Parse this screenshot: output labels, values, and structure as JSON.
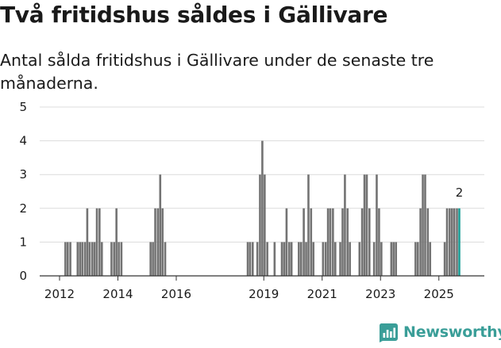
{
  "header": {
    "title": "Två fritidshus såldes i Gällivare",
    "subtitle": "Antal sålda fritidshus i Gällivare under de senaste tre månaderna."
  },
  "brand": {
    "name": "Newsworthy"
  },
  "colors": {
    "bar": "#737373",
    "highlight": "#1a9e96",
    "grid": "#dcdcdc",
    "axis": "#333333",
    "brand": "#3a9e98"
  },
  "chart_data": {
    "type": "bar",
    "title": "Två fritidshus såldes i Gällivare",
    "subtitle": "Antal sålda fritidshus i Gällivare under de senaste tre månaderna.",
    "xlabel": "",
    "ylabel": "",
    "ylim": [
      0,
      5
    ],
    "yticks": [
      0,
      1,
      2,
      3,
      4,
      5
    ],
    "xticks": [
      {
        "year": 2012,
        "label": "2012"
      },
      {
        "year": 2014,
        "label": "2014"
      },
      {
        "year": 2016,
        "label": "2016"
      },
      {
        "year": 2019,
        "label": "2019"
      },
      {
        "year": 2021,
        "label": "2021"
      },
      {
        "year": 2023,
        "label": "2023"
      },
      {
        "year": 2025,
        "label": "2025"
      }
    ],
    "x_range": [
      2011.5,
      2026.1
    ],
    "series": [
      {
        "name": "Sålda fritidshus",
        "bars": [
          {
            "x": 2012.2,
            "value": 1
          },
          {
            "x": 2012.28,
            "value": 1
          },
          {
            "x": 2012.37,
            "value": 1
          },
          {
            "x": 2012.62,
            "value": 1
          },
          {
            "x": 2012.7,
            "value": 1
          },
          {
            "x": 2012.78,
            "value": 1
          },
          {
            "x": 2012.87,
            "value": 1
          },
          {
            "x": 2012.95,
            "value": 2
          },
          {
            "x": 2013.03,
            "value": 1
          },
          {
            "x": 2013.12,
            "value": 1
          },
          {
            "x": 2013.2,
            "value": 1
          },
          {
            "x": 2013.28,
            "value": 2
          },
          {
            "x": 2013.37,
            "value": 2
          },
          {
            "x": 2013.45,
            "value": 1
          },
          {
            "x": 2013.78,
            "value": 1
          },
          {
            "x": 2013.87,
            "value": 1
          },
          {
            "x": 2013.95,
            "value": 2
          },
          {
            "x": 2014.03,
            "value": 1
          },
          {
            "x": 2014.12,
            "value": 1
          },
          {
            "x": 2015.12,
            "value": 1
          },
          {
            "x": 2015.2,
            "value": 1
          },
          {
            "x": 2015.28,
            "value": 2
          },
          {
            "x": 2015.37,
            "value": 2
          },
          {
            "x": 2015.45,
            "value": 3
          },
          {
            "x": 2015.53,
            "value": 2
          },
          {
            "x": 2015.62,
            "value": 1
          },
          {
            "x": 2018.45,
            "value": 1
          },
          {
            "x": 2018.53,
            "value": 1
          },
          {
            "x": 2018.62,
            "value": 1
          },
          {
            "x": 2018.78,
            "value": 1
          },
          {
            "x": 2018.87,
            "value": 3
          },
          {
            "x": 2018.95,
            "value": 4
          },
          {
            "x": 2019.03,
            "value": 3
          },
          {
            "x": 2019.12,
            "value": 1
          },
          {
            "x": 2019.37,
            "value": 1
          },
          {
            "x": 2019.62,
            "value": 1
          },
          {
            "x": 2019.7,
            "value": 1
          },
          {
            "x": 2019.78,
            "value": 2
          },
          {
            "x": 2019.87,
            "value": 1
          },
          {
            "x": 2019.95,
            "value": 1
          },
          {
            "x": 2020.2,
            "value": 1
          },
          {
            "x": 2020.28,
            "value": 1
          },
          {
            "x": 2020.37,
            "value": 2
          },
          {
            "x": 2020.45,
            "value": 1
          },
          {
            "x": 2020.53,
            "value": 3
          },
          {
            "x": 2020.62,
            "value": 2
          },
          {
            "x": 2020.7,
            "value": 1
          },
          {
            "x": 2021.03,
            "value": 1
          },
          {
            "x": 2021.12,
            "value": 1
          },
          {
            "x": 2021.2,
            "value": 2
          },
          {
            "x": 2021.28,
            "value": 2
          },
          {
            "x": 2021.37,
            "value": 2
          },
          {
            "x": 2021.45,
            "value": 1
          },
          {
            "x": 2021.62,
            "value": 1
          },
          {
            "x": 2021.7,
            "value": 2
          },
          {
            "x": 2021.78,
            "value": 3
          },
          {
            "x": 2021.87,
            "value": 2
          },
          {
            "x": 2021.95,
            "value": 1
          },
          {
            "x": 2022.28,
            "value": 1
          },
          {
            "x": 2022.37,
            "value": 2
          },
          {
            "x": 2022.45,
            "value": 3
          },
          {
            "x": 2022.53,
            "value": 3
          },
          {
            "x": 2022.62,
            "value": 2
          },
          {
            "x": 2022.78,
            "value": 1
          },
          {
            "x": 2022.87,
            "value": 3
          },
          {
            "x": 2022.95,
            "value": 2
          },
          {
            "x": 2023.03,
            "value": 1
          },
          {
            "x": 2023.37,
            "value": 1
          },
          {
            "x": 2023.45,
            "value": 1
          },
          {
            "x": 2023.53,
            "value": 1
          },
          {
            "x": 2024.2,
            "value": 1
          },
          {
            "x": 2024.28,
            "value": 1
          },
          {
            "x": 2024.37,
            "value": 2
          },
          {
            "x": 2024.45,
            "value": 3
          },
          {
            "x": 2024.53,
            "value": 3
          },
          {
            "x": 2024.62,
            "value": 2
          },
          {
            "x": 2024.7,
            "value": 1
          },
          {
            "x": 2025.2,
            "value": 1
          },
          {
            "x": 2025.28,
            "value": 2
          },
          {
            "x": 2025.37,
            "value": 2
          },
          {
            "x": 2025.45,
            "value": 2
          },
          {
            "x": 2025.53,
            "value": 2
          },
          {
            "x": 2025.62,
            "value": 2
          }
        ],
        "highlight": {
          "x": 2025.7,
          "value": 2,
          "label": "2"
        }
      }
    ]
  }
}
